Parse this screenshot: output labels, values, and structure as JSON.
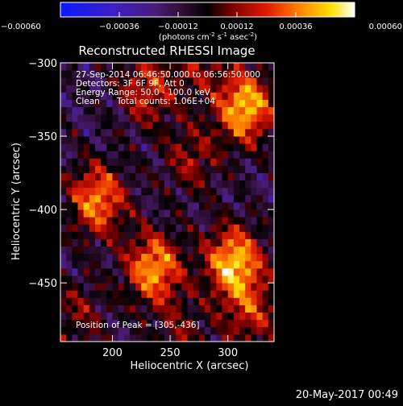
{
  "chart_data": {
    "type": "heatmap",
    "title": "Reconstructed RHESSI Image",
    "xlabel": "Heliocentric X (arcsec)",
    "ylabel": "Heliocentric Y (arcsec)",
    "xlim": [
      155,
      340
    ],
    "ylim": [
      -490,
      -300
    ],
    "x_ticks": [
      200,
      250,
      300
    ],
    "y_ticks": [
      -300,
      -350,
      -400,
      -450
    ],
    "colorbar": {
      "label_main": "(photons cm",
      "label_sup1": "-2",
      "label_mid1": " s",
      "label_sup2": "-1",
      "label_mid2": " asec",
      "label_sup3": "-2",
      "label_end": ")",
      "range": [
        -0.0006,
        0.0006
      ],
      "ticks": [
        "-0.00060",
        "-0.00036",
        "-0.00012",
        "0.00012",
        "0.00036",
        "0.00060"
      ],
      "colormap": "blue-purple-red-yellow-white"
    },
    "annotations": {
      "time_range": "27-Sep-2014 06:46:50.000 to 06:56:50.000",
      "detectors": "Detectors: 3F 6F 9F, Att 0",
      "energy_range": "Energy Range: 50.0 - 100.0 keV",
      "clean": "Clean",
      "total_counts": "Total counts: 1.06E+04",
      "peak": "Position of Peak = [305,-436]"
    },
    "sources": [
      {
        "x": 315,
        "y": -330,
        "intensity": 0.0006
      },
      {
        "x": 187,
        "y": -393,
        "intensity": 0.0005
      },
      {
        "x": 236,
        "y": -440,
        "intensity": 0.00054
      },
      {
        "x": 305,
        "y": -436,
        "intensity": 0.0006
      },
      {
        "x": 230,
        "y": -318,
        "intensity": 0.00034
      },
      {
        "x": 320,
        "y": -470,
        "intensity": 0.0003
      },
      {
        "x": 268,
        "y": -365,
        "intensity": 0.00024
      },
      {
        "x": 170,
        "y": -470,
        "intensity": 0.0002
      },
      {
        "x": 260,
        "y": -485,
        "intensity": 0.00018
      },
      {
        "x": 275,
        "y": -300,
        "intensity": 0.00022
      }
    ]
  },
  "timestamp": "20-May-2017 00:49"
}
